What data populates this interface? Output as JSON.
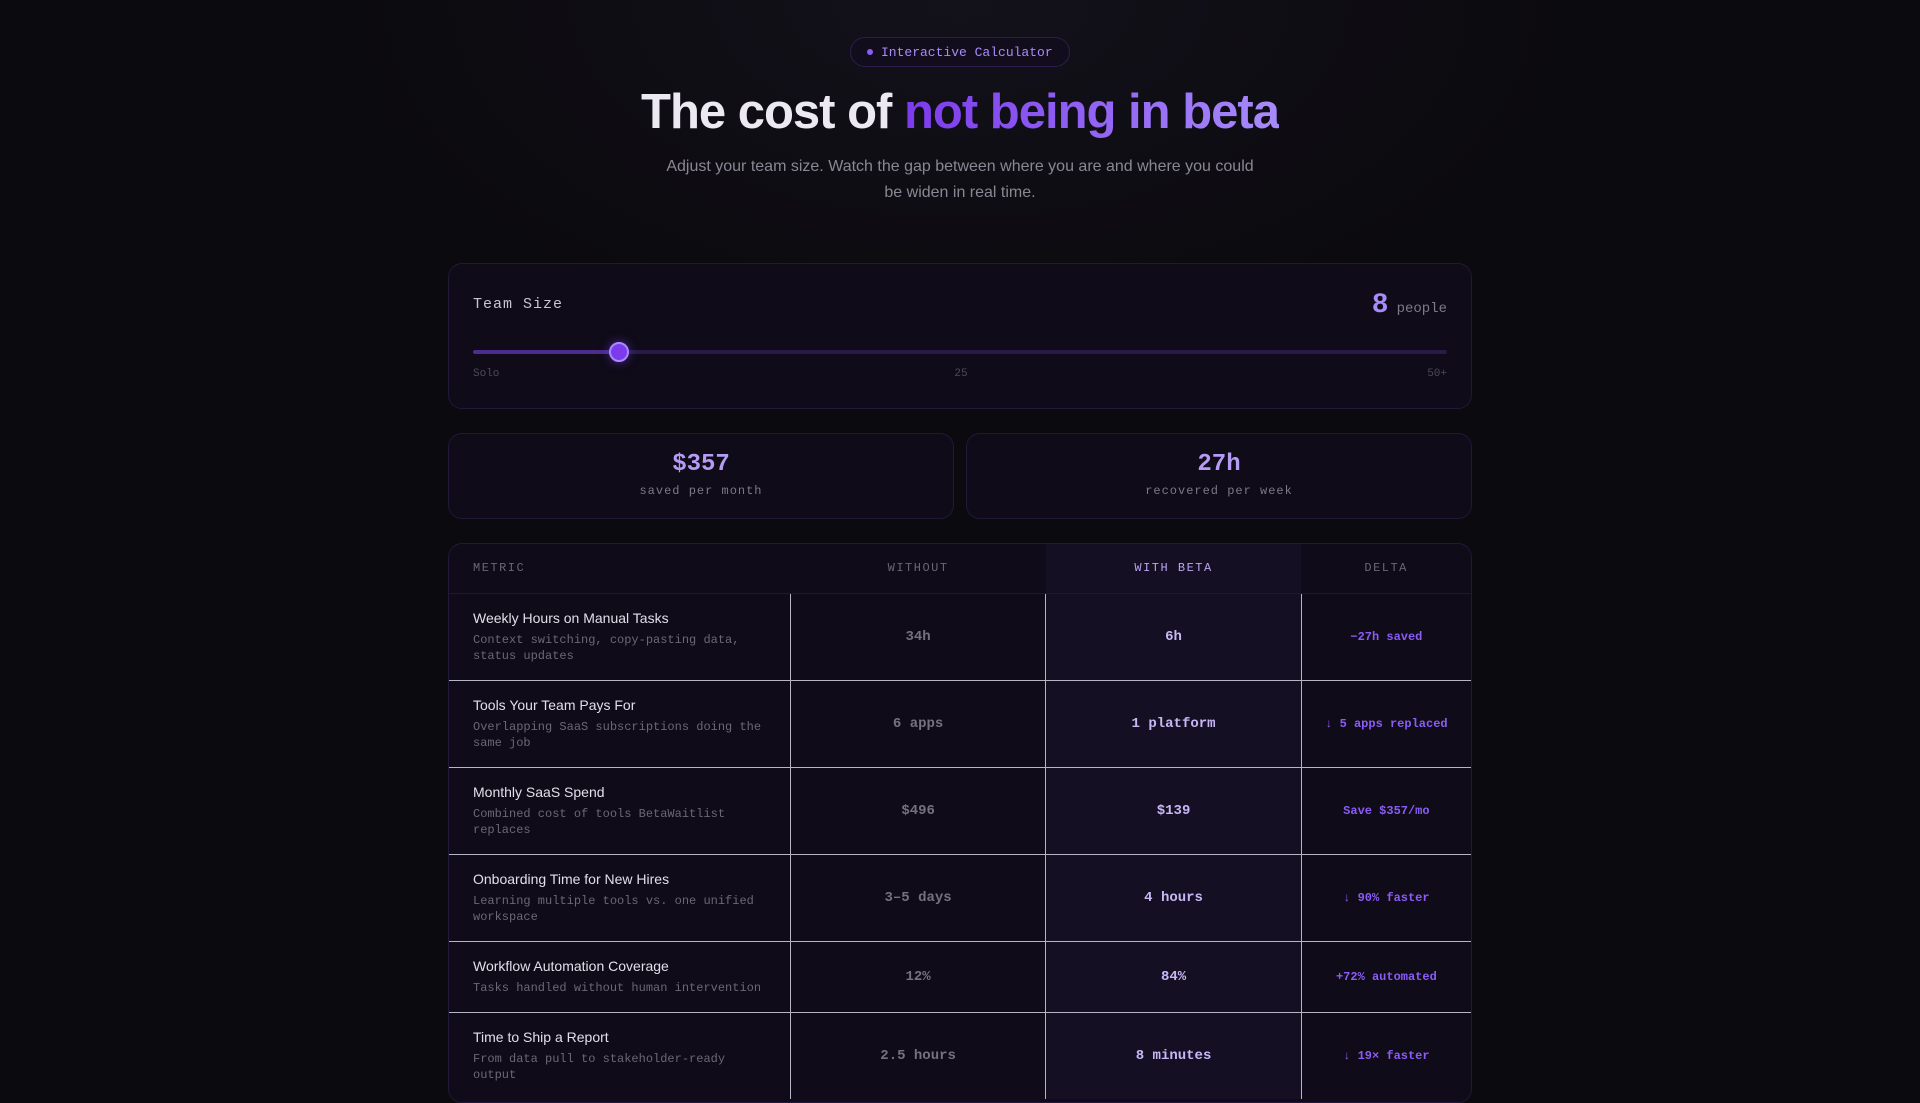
{
  "badge": {
    "label": "Interactive Calculator"
  },
  "header": {
    "title_part1": "The cost of ",
    "title_accent": "not being in beta",
    "subtitle": "Adjust your team size. Watch the gap between where you are and where you could be widen in real time."
  },
  "team": {
    "label": "Team Size",
    "value": "8",
    "unit": "people",
    "slider_level": 0.15,
    "scale": {
      "min": "Solo",
      "mid": "25",
      "max": "50+"
    }
  },
  "stats": [
    {
      "value": "$357",
      "label": "saved per month"
    },
    {
      "value": "27h",
      "label": "recovered per week"
    }
  ],
  "table": {
    "headers": {
      "metric": "METRIC",
      "without": "WITHOUT",
      "with_beta": "WITH BETA",
      "delta": "DELTA"
    },
    "rows": [
      {
        "title": "Weekly Hours on Manual Tasks",
        "desc": "Context switching, copy-pasting data, status updates",
        "without": "34h",
        "beta": "6h",
        "delta": "−27h saved"
      },
      {
        "title": "Tools Your Team Pays For",
        "desc": "Overlapping SaaS subscriptions doing the same job",
        "without": "6 apps",
        "beta": "1 platform",
        "delta": "↓ 5 apps replaced"
      },
      {
        "title": "Monthly SaaS Spend",
        "desc": "Combined cost of tools BetaWaitlist replaces",
        "without": "$496",
        "beta": "$139",
        "delta": "Save $357/mo"
      },
      {
        "title": "Onboarding Time for New Hires",
        "desc": "Learning multiple tools vs. one unified workspace",
        "without": "3–5 days",
        "beta": "4 hours",
        "delta": "↓ 90% faster"
      },
      {
        "title": "Workflow Automation Coverage",
        "desc": "Tasks handled without human intervention",
        "without": "12%",
        "beta": "84%",
        "delta": "+72% automated"
      },
      {
        "title": "Time to Ship a Report",
        "desc": "From data pull to stakeholder-ready output",
        "without": "2.5 hours",
        "beta": "8 minutes",
        "delta": "↓ 19× faster"
      }
    ]
  },
  "colors": {
    "accent": "#8b5cf6",
    "accent_light": "#a78bfa",
    "background": "#0b0a0e"
  }
}
